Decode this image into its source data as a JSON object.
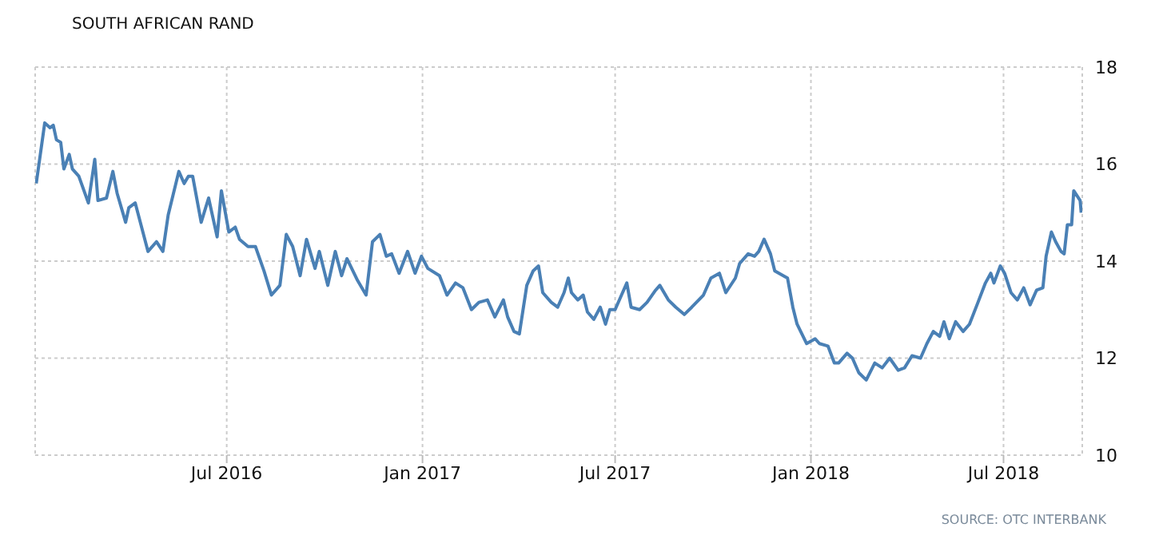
{
  "chart_data": {
    "type": "line",
    "title": "SOUTH AFRICAN RAND",
    "x": [
      "2016-01-04",
      "2016-01-12",
      "2016-01-17",
      "2016-01-20",
      "2016-01-23",
      "2016-01-27",
      "2016-01-30",
      "2016-02-04",
      "2016-02-07",
      "2016-02-13",
      "2016-02-22",
      "2016-02-28",
      "2016-03-02",
      "2016-03-10",
      "2016-03-16",
      "2016-03-20",
      "2016-03-28",
      "2016-03-31",
      "2016-04-06",
      "2016-04-18",
      "2016-04-26",
      "2016-05-02",
      "2016-05-07",
      "2016-05-17",
      "2016-05-22",
      "2016-05-26",
      "2016-05-30",
      "2016-06-07",
      "2016-06-14",
      "2016-06-22",
      "2016-06-26",
      "2016-07-03",
      "2016-07-09",
      "2016-07-13",
      "2016-07-21",
      "2016-07-28",
      "2016-08-05",
      "2016-08-12",
      "2016-08-20",
      "2016-08-26",
      "2016-09-01",
      "2016-09-08",
      "2016-09-14",
      "2016-09-22",
      "2016-09-26",
      "2016-10-04",
      "2016-10-11",
      "2016-10-17",
      "2016-10-22",
      "2016-11-01",
      "2016-11-09",
      "2016-11-15",
      "2016-11-22",
      "2016-11-28",
      "2016-12-03",
      "2016-12-10",
      "2016-12-18",
      "2016-12-25",
      "2016-12-31",
      "2017-01-06",
      "2017-01-17",
      "2017-01-24",
      "2017-02-01",
      "2017-02-08",
      "2017-02-16",
      "2017-02-23",
      "2017-03-03",
      "2017-03-10",
      "2017-03-18",
      "2017-03-22",
      "2017-03-28",
      "2017-04-02",
      "2017-04-09",
      "2017-04-15",
      "2017-04-20",
      "2017-04-24",
      "2017-05-02",
      "2017-05-08",
      "2017-05-14",
      "2017-05-18",
      "2017-05-21",
      "2017-05-27",
      "2017-06-01",
      "2017-06-05",
      "2017-06-11",
      "2017-06-17",
      "2017-06-22",
      "2017-06-26",
      "2017-07-01",
      "2017-07-07",
      "2017-07-12",
      "2017-07-16",
      "2017-07-24",
      "2017-07-31",
      "2017-08-08",
      "2017-08-12",
      "2017-08-20",
      "2017-08-27",
      "2017-09-04",
      "2017-09-11",
      "2017-09-22",
      "2017-09-29",
      "2017-10-07",
      "2017-10-13",
      "2017-10-22",
      "2017-10-26",
      "2017-11-03",
      "2017-11-09",
      "2017-11-13",
      "2017-11-18",
      "2017-11-24",
      "2017-11-28",
      "2017-12-06",
      "2017-12-10",
      "2017-12-15",
      "2017-12-19",
      "2017-12-28",
      "2018-01-05",
      "2018-01-09",
      "2018-01-17",
      "2018-01-23",
      "2018-01-27",
      "2018-02-04",
      "2018-02-09",
      "2018-02-15",
      "2018-02-22",
      "2018-03-02",
      "2018-03-09",
      "2018-03-16",
      "2018-03-24",
      "2018-03-30",
      "2018-04-06",
      "2018-04-14",
      "2018-04-20",
      "2018-04-26",
      "2018-05-02",
      "2018-05-06",
      "2018-05-11",
      "2018-05-17",
      "2018-05-24",
      "2018-05-30",
      "2018-06-07",
      "2018-06-14",
      "2018-06-19",
      "2018-06-22",
      "2018-06-28",
      "2018-07-02",
      "2018-07-08",
      "2018-07-14",
      "2018-07-20",
      "2018-07-26",
      "2018-08-01",
      "2018-08-07",
      "2018-08-10",
      "2018-08-15",
      "2018-08-19",
      "2018-08-24",
      "2018-08-27",
      "2018-08-30",
      "2018-09-03",
      "2018-09-05",
      "2018-09-11",
      "2018-09-12"
    ],
    "series": [
      {
        "color": "#4a80b5",
        "values": [
          15.6,
          16.85,
          16.75,
          16.8,
          16.5,
          16.45,
          15.9,
          16.2,
          15.9,
          15.75,
          15.2,
          16.1,
          15.25,
          15.3,
          15.85,
          15.4,
          14.8,
          15.1,
          15.2,
          14.2,
          14.4,
          14.2,
          14.95,
          15.85,
          15.6,
          15.75,
          15.75,
          14.8,
          15.3,
          14.5,
          15.45,
          14.6,
          14.7,
          14.45,
          14.3,
          14.3,
          13.8,
          13.3,
          13.5,
          14.55,
          14.3,
          13.7,
          14.45,
          13.85,
          14.2,
          13.5,
          14.2,
          13.7,
          14.05,
          13.6,
          13.3,
          14.4,
          14.55,
          14.1,
          14.15,
          13.75,
          14.2,
          13.75,
          14.1,
          13.85,
          13.7,
          13.3,
          13.55,
          13.45,
          13.0,
          13.15,
          13.2,
          12.85,
          13.2,
          12.85,
          12.55,
          12.5,
          13.5,
          13.8,
          13.9,
          13.35,
          13.15,
          13.05,
          13.35,
          13.65,
          13.35,
          13.2,
          13.3,
          12.95,
          12.8,
          13.05,
          12.7,
          13.0,
          13.0,
          13.3,
          13.55,
          13.05,
          13.0,
          13.15,
          13.4,
          13.5,
          13.2,
          13.05,
          12.9,
          13.05,
          13.3,
          13.65,
          13.75,
          13.35,
          13.65,
          13.95,
          14.15,
          14.1,
          14.2,
          14.45,
          14.15,
          13.8,
          13.7,
          13.65,
          13.05,
          12.7,
          12.3,
          12.4,
          12.3,
          12.25,
          11.9,
          11.9,
          12.1,
          12.0,
          11.7,
          11.55,
          11.9,
          11.8,
          12.0,
          11.75,
          11.8,
          12.05,
          12.0,
          12.3,
          12.55,
          12.45,
          12.75,
          12.4,
          12.75,
          12.55,
          12.7,
          13.15,
          13.55,
          13.75,
          13.55,
          13.9,
          13.75,
          13.35,
          13.2,
          13.45,
          13.1,
          13.4,
          13.45,
          14.1,
          14.6,
          14.4,
          14.2,
          14.15,
          14.75,
          14.75,
          15.45,
          15.25,
          15.0
        ]
      }
    ],
    "xlim": [
      "2016-01-03",
      "2018-09-13"
    ],
    "xticks": [
      {
        "value": "2016-07-01",
        "label": "Jul 2016"
      },
      {
        "value": "2017-01-01",
        "label": "Jan 2017"
      },
      {
        "value": "2017-07-01",
        "label": "Jul 2017"
      },
      {
        "value": "2018-01-01",
        "label": "Jan 2018"
      },
      {
        "value": "2018-07-01",
        "label": "Jul 2018"
      }
    ],
    "ylim": [
      10,
      18
    ],
    "yticks": [
      10,
      12,
      14,
      16,
      18
    ],
    "grid": true,
    "line_style": "solid",
    "marker": "none",
    "annotations": [
      "SOURCE: OTC INTERBANK"
    ]
  }
}
